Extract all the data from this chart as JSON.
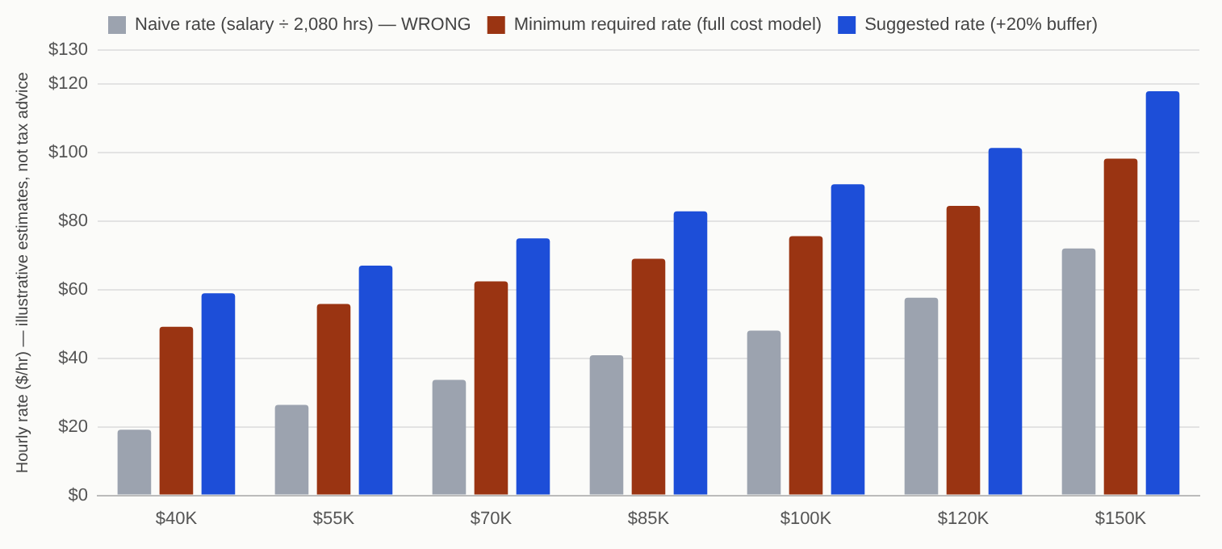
{
  "chart_data": {
    "type": "bar",
    "ylabel": "Hourly rate ($/hr) — illustrative estimates, not tax advice",
    "categories": [
      "$40K",
      "$55K",
      "$70K",
      "$85K",
      "$100K",
      "$120K",
      "$150K"
    ],
    "series": [
      {
        "name": "Naive rate (salary ÷ 2,080 hrs) — WRONG",
        "color": "#9ca3af",
        "values": [
          19.2,
          26.4,
          33.7,
          40.9,
          48.1,
          57.7,
          72.1
        ]
      },
      {
        "name": "Minimum required rate (full cost model)",
        "color": "#9a3412",
        "values": [
          49.2,
          55.9,
          62.5,
          69.1,
          75.7,
          84.5,
          98.3
        ]
      },
      {
        "name": "Suggested rate (+20% buffer)",
        "color": "#1d4ed8",
        "values": [
          59.0,
          67.1,
          75.0,
          82.9,
          90.8,
          101.4,
          118.0
        ]
      }
    ],
    "ylim": [
      0,
      130
    ],
    "yticks": [
      {
        "value": 0,
        "label": "$0"
      },
      {
        "value": 20,
        "label": "$20"
      },
      {
        "value": 40,
        "label": "$40"
      },
      {
        "value": 60,
        "label": "$60"
      },
      {
        "value": 80,
        "label": "$80"
      },
      {
        "value": 100,
        "label": "$100"
      },
      {
        "value": 120,
        "label": "$120"
      },
      {
        "value": 130,
        "label": "$130"
      }
    ],
    "grid": "y",
    "legend": "top"
  }
}
